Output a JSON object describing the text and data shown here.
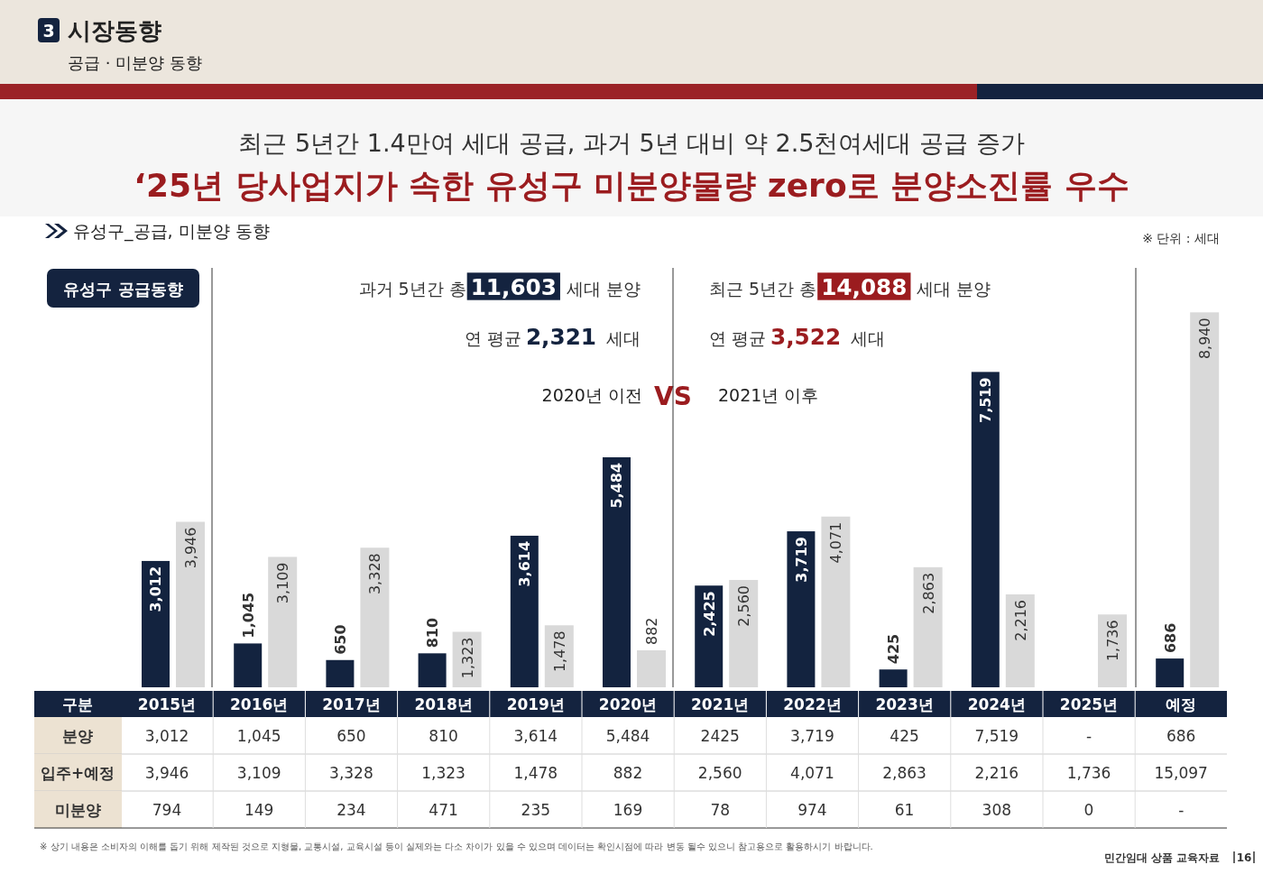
{
  "chart_data": {
    "type": "bar",
    "title": "‘25년 당사업지가 속한 유성구 미분양물량 zero로 분양소진률 우수",
    "subtitle": "최근 5년간 1.4만여 세대 공급, 과거 5년 대비 약 2.5천여세대 공급 증가",
    "annotations": [
      "3",
      "시장동향",
      "공급 · 미분양 동향",
      "유성구_공급, 미분양 동향",
      "※ 단위 : 세대",
      "유성구 공급동향",
      "과거 5년간 총 **11,603**세대 분양",
      "연 평균 **2,321**세대",
      "2020년 이전",
      "VS",
      "2021년 이후",
      "최근 5년간 총 **14,088**세대 분양",
      "연 평균 **3,522**세대",
      "※ 상기 내용은 소비자의 이해를 돕기 위해 제작된 것으로 지형물, 교통시설, 교육시설 등이 실제와는 다소 차이가 있을 수 있으며 데이터는 확인시점에 따라 변동 될수 있으니 참고용으로 활용하시기 바랍니다.",
      "민간임대 상품 교육자료",
      "16",
      "구분",
      "분양",
      "입주+예정",
      "미분양",
      "3,012",
      "1,045",
      "650",
      "810",
      "3,614",
      "5,484",
      "2425",
      "3,719",
      "425",
      "7,519",
      "-",
      "686",
      "3,946",
      "3,109",
      "3,328",
      "1,323",
      "1,478",
      "882",
      "2,560",
      "4,071",
      "2,863",
      "2,216",
      "1,736",
      "15,097",
      "794",
      "149",
      "234",
      "471",
      "235",
      "169",
      "78",
      "974",
      "61",
      "308",
      "0",
      "-"
    ],
    "categories": [
      "2015년",
      "2016년",
      "2017년",
      "2018년",
      "2019년",
      "2020년",
      "2021년",
      "2022년",
      "2023년",
      "2024년",
      "2025년",
      "예정"
    ],
    "series": [
      {
        "color": "#13233f",
        "values": [
          3012,
          1045,
          650,
          810,
          3614,
          5484,
          2425,
          3719,
          425,
          7519,
          null,
          686
        ],
        "value_labels": [
          "3,012",
          "1,045",
          "650",
          "810",
          "3,614",
          "5,484",
          "2,425",
          "3,719",
          "425",
          "7,519",
          null,
          "686"
        ]
      },
      {
        "color": "#d9d9d9",
        "values": [
          3946,
          3109,
          3328,
          1323,
          1478,
          882,
          2560,
          4071,
          2863,
          2216,
          1736,
          8940
        ],
        "value_labels": [
          "3,946",
          "3,109",
          "3,328",
          "1,323",
          "1,478",
          "882",
          "2,560",
          "4,071",
          "2,863",
          "2,216",
          "1,736",
          "8,940"
        ]
      }
    ],
    "ylim": [
      0,
      10000
    ],
    "tick_labels": "x"
  }
}
